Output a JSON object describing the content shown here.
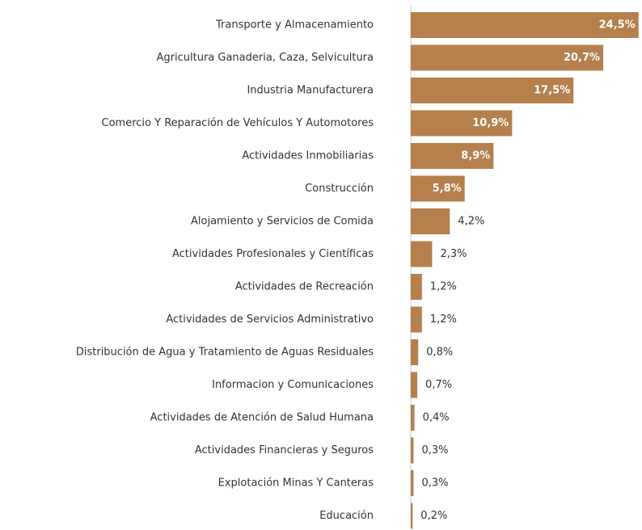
{
  "chart_data": {
    "type": "bar",
    "orientation": "horizontal",
    "color": "#b5804c",
    "categories": [
      "Transporte y Almacenamiento",
      "Agricultura Ganaderia, Caza, Selvicultura",
      "Industria Manufacturera",
      "Comercio Y Reparación de Vehículos Y Automotores",
      "Actividades Inmobiliarias",
      "Construcción",
      "Alojamiento y Servicios de Comida",
      "Actividades Profesionales y Científicas",
      "Actividades de Recreación",
      "Actividades de Servicios Administrativo",
      "Distribución de Agua y Tratamiento de Aguas Residuales",
      "Informacion y Comunicaciones",
      "Actividades de Atención de Salud Humana",
      "Actividades Financieras y Seguros",
      "Explotación Minas Y Canteras",
      "Educación"
    ],
    "values": [
      24.5,
      20.7,
      17.5,
      10.9,
      8.9,
      5.8,
      4.2,
      2.3,
      1.2,
      1.2,
      0.8,
      0.7,
      0.4,
      0.3,
      0.3,
      0.2
    ],
    "value_labels": [
      "24,5%",
      "20,7%",
      "17,5%",
      "10,9%",
      "8,9%",
      "5,8%",
      "4,2%",
      "2,3%",
      "1,2%",
      "1,2%",
      "0,8%",
      "0,7%",
      "0,4%",
      "0,3%",
      "0,3%",
      "0,2%"
    ]
  }
}
